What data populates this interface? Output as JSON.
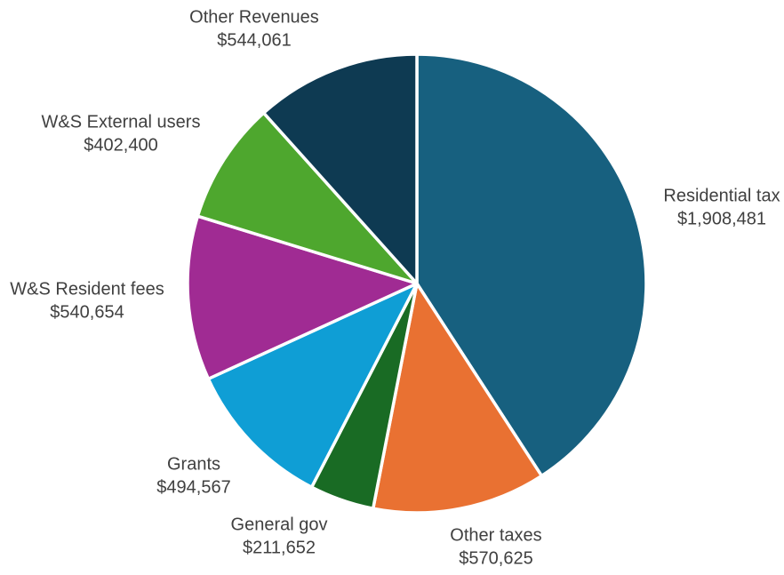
{
  "chart_data": {
    "type": "pie",
    "title": "",
    "start": "12 o'clock",
    "direction": "clockwise",
    "legend": "none",
    "data_labels": "outside, category name and value",
    "slices": [
      {
        "label": "Residential tax",
        "value": 1908481,
        "value_label": "$1,908,481",
        "color": "#17607F"
      },
      {
        "label": "Other taxes",
        "value": 570625,
        "value_label": "$570,625",
        "color": "#E97132"
      },
      {
        "label": "General gov",
        "value": 211652,
        "value_label": "$211,652",
        "color": "#196B24"
      },
      {
        "label": "Grants",
        "value": 494567,
        "value_label": "$494,567",
        "color": "#0F9ED5"
      },
      {
        "label": "W&S Resident fees",
        "value": 540654,
        "value_label": "$540,654",
        "color": "#A02B93"
      },
      {
        "label": "W&S External users",
        "value": 402400,
        "value_label": "$402,400",
        "color": "#4EA72E"
      },
      {
        "label": "Other Revenues",
        "value": 544061,
        "value_label": "$544,061",
        "color": "#0E3A52"
      }
    ]
  }
}
